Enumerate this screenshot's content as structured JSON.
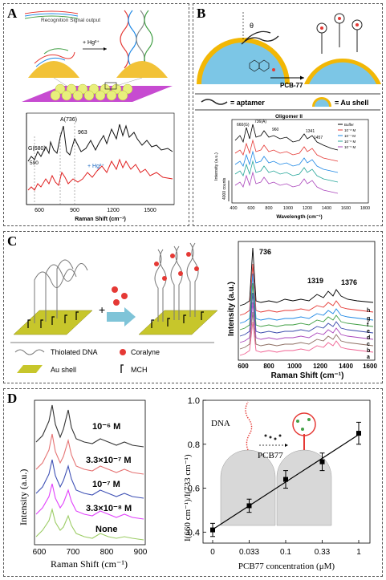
{
  "panels": {
    "A": {
      "label": "A",
      "recognition": "Recognition  Signal output",
      "hg_top": "+ Hg²⁺",
      "hg_spec": "+ Hg²⁺",
      "peaks": [
        "G(680)",
        "A(736)",
        "963",
        "590"
      ],
      "xticks": [
        "600",
        "900",
        "1200",
        "1500"
      ],
      "xlabel": "Raman Shift (cm⁻¹)"
    },
    "B": {
      "label": "B",
      "theta": "θ",
      "pcb": "PCB-77",
      "aptamer": "= aptamer",
      "aushell": "= Au shell",
      "chart_title": "Oligomer II",
      "legend": [
        "Buffer",
        "10⁻⁸ M",
        "10⁻⁷ M",
        "10⁻⁶ M",
        "10⁻⁵ M"
      ],
      "peaks": [
        "660(G)",
        "736(A)",
        "960",
        "1341",
        "1457"
      ],
      "ylabel": "Intensity (a.u.)",
      "scalebar": "4000 counts",
      "xticks": [
        "400",
        "600",
        "800",
        "1000",
        "1200",
        "1400",
        "1600",
        "1800"
      ],
      "xlabel": "Wavelength (cm⁻¹)"
    },
    "C": {
      "label": "C",
      "plus": "+",
      "legend": {
        "dna": "Thiolated DNA",
        "coralyne": "Coralyne",
        "au": "Au shell",
        "mch": "MCH"
      },
      "peaks": [
        "736",
        "1319",
        "1376"
      ],
      "traces": [
        "h",
        "g",
        "f",
        "e",
        "d",
        "c",
        "b",
        "a"
      ],
      "ylabel": "Intensity (a.u.)",
      "xticks": [
        "600",
        "800",
        "1000",
        "1200",
        "1400",
        "1600"
      ],
      "xlabel": "Raman Shift (cm⁻¹)"
    },
    "D": {
      "label": "D",
      "left": {
        "conc": [
          "10⁻⁶ M",
          "3.3×10⁻⁷ M",
          "10⁻⁷ M",
          "3.3×10⁻⁸ M",
          "None"
        ],
        "ylabel": "Intensity (a.u.)",
        "xticks": [
          "600",
          "700",
          "800",
          "900"
        ],
        "xlabel": "Raman Shift (cm⁻¹)"
      },
      "right": {
        "dna": "DNA",
        "pcb": "PCB77",
        "ylabel": "I(660 cm⁻¹)/I(733 cm⁻¹)",
        "xlabel": "PCB77 concentration (μM)"
      }
    }
  },
  "chart_data": {
    "type": "scatter",
    "x": [
      "0",
      "0.033",
      "0.1",
      "0.33",
      "1"
    ],
    "values": [
      0.41,
      0.52,
      0.64,
      0.72,
      0.85
    ],
    "errors": [
      0.03,
      0.03,
      0.04,
      0.04,
      0.05
    ],
    "yticks": [
      "0.4",
      "0.6",
      "0.8",
      "1.0"
    ],
    "ylim": [
      0.35,
      1.0
    ],
    "xlabel": "PCB77 concentration (μM)",
    "ylabel": "I(660 cm⁻¹)/I(733 cm⁻¹)"
  }
}
